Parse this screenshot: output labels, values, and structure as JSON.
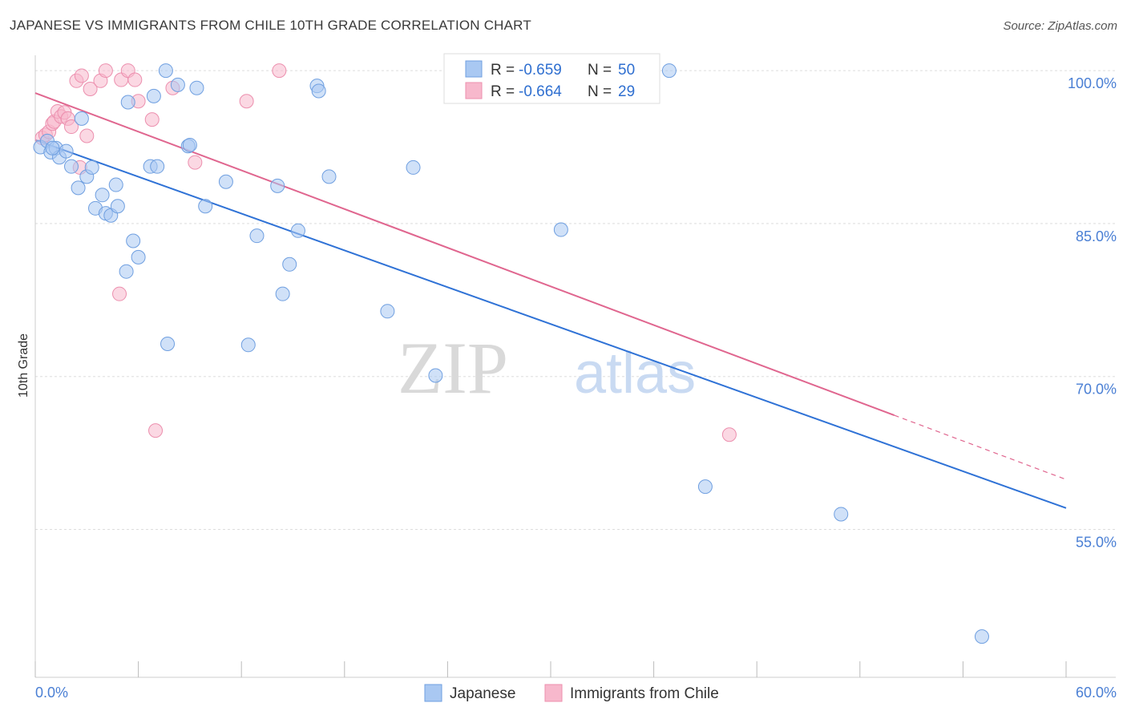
{
  "title": "JAPANESE VS IMMIGRANTS FROM CHILE 10TH GRADE CORRELATION CHART",
  "source": "Source: ZipAtlas.com",
  "watermark": {
    "zip": "ZIP",
    "atlas": "atlas"
  },
  "colors": {
    "japanese_fill": "#a9c8f2",
    "japanese_stroke": "#6f9fe0",
    "japanese_line": "#2f72d6",
    "chile_fill": "#f7b8cc",
    "chile_stroke": "#ec8fae",
    "chile_line": "#e0668f",
    "grid": "#dddddd",
    "tick_label": "#4a7fd4"
  },
  "chart_data": {
    "type": "scatter",
    "ylabel": "10th Grade",
    "xlabel": "",
    "xlim": [
      0,
      60
    ],
    "ylim": [
      40.5,
      101.5
    ],
    "x_tick_labels": [
      {
        "value": 0,
        "label": "0.0%"
      },
      {
        "value": 60,
        "label": "60.0%"
      }
    ],
    "x_minor_ticks": [
      0,
      6,
      12,
      18,
      24,
      30,
      36,
      42,
      48,
      54,
      60
    ],
    "y_ticks": [
      {
        "value": 100,
        "label": "100.0%"
      },
      {
        "value": 85,
        "label": "85.0%"
      },
      {
        "value": 70,
        "label": "70.0%"
      },
      {
        "value": 55,
        "label": "55.0%"
      }
    ],
    "grid": true,
    "legend": [
      {
        "name": "Japanese",
        "r_label": "R = ",
        "r": "-0.659",
        "n_label": "N = ",
        "n": "50"
      },
      {
        "name": "Immigrants from Chile",
        "r_label": "R = ",
        "r": "-0.664",
        "n_label": "N = ",
        "n": "29"
      }
    ],
    "series": [
      {
        "name": "Japanese",
        "points": [
          [
            0.3,
            92.5
          ],
          [
            0.7,
            93.1
          ],
          [
            0.9,
            92.0
          ],
          [
            1.2,
            92.4
          ],
          [
            1.4,
            91.5
          ],
          [
            1.8,
            92.1
          ],
          [
            2.1,
            90.6
          ],
          [
            2.5,
            88.5
          ],
          [
            2.7,
            95.3
          ],
          [
            3.0,
            89.6
          ],
          [
            3.3,
            90.5
          ],
          [
            3.5,
            86.5
          ],
          [
            3.9,
            87.8
          ],
          [
            4.1,
            86.0
          ],
          [
            4.4,
            85.8
          ],
          [
            4.7,
            88.8
          ],
          [
            4.8,
            86.7
          ],
          [
            5.3,
            80.3
          ],
          [
            5.4,
            96.9
          ],
          [
            5.7,
            83.3
          ],
          [
            6.0,
            81.7
          ],
          [
            6.7,
            90.6
          ],
          [
            6.9,
            97.5
          ],
          [
            7.1,
            90.6
          ],
          [
            7.6,
            100.0
          ],
          [
            7.7,
            73.2
          ],
          [
            8.3,
            98.6
          ],
          [
            8.9,
            92.6
          ],
          [
            9.0,
            92.7
          ],
          [
            9.4,
            98.3
          ],
          [
            9.9,
            86.7
          ],
          [
            11.1,
            89.1
          ],
          [
            12.4,
            73.1
          ],
          [
            12.9,
            83.8
          ],
          [
            14.1,
            88.7
          ],
          [
            14.4,
            78.1
          ],
          [
            14.8,
            81.0
          ],
          [
            15.3,
            84.3
          ],
          [
            16.4,
            98.5
          ],
          [
            16.5,
            98.0
          ],
          [
            17.1,
            89.6
          ],
          [
            20.5,
            76.4
          ],
          [
            22.0,
            90.5
          ],
          [
            23.3,
            70.1
          ],
          [
            30.6,
            84.4
          ],
          [
            36.9,
            100.0
          ],
          [
            39.0,
            59.2
          ],
          [
            46.9,
            56.5
          ],
          [
            55.1,
            44.5
          ],
          [
            1.0,
            92.4
          ]
        ],
        "trend": [
          [
            0,
            93.2
          ],
          [
            60,
            57.1
          ]
        ]
      },
      {
        "name": "Immigrants from Chile",
        "points": [
          [
            0.4,
            93.4
          ],
          [
            0.6,
            93.7
          ],
          [
            0.8,
            94.0
          ],
          [
            1.0,
            94.8
          ],
          [
            1.1,
            95.0
          ],
          [
            1.3,
            96.0
          ],
          [
            1.5,
            95.5
          ],
          [
            1.7,
            95.9
          ],
          [
            1.9,
            95.3
          ],
          [
            2.1,
            94.5
          ],
          [
            2.4,
            99.0
          ],
          [
            2.6,
            90.5
          ],
          [
            2.7,
            99.5
          ],
          [
            3.0,
            93.6
          ],
          [
            3.2,
            98.2
          ],
          [
            3.8,
            99.0
          ],
          [
            4.1,
            100.0
          ],
          [
            4.9,
            78.1
          ],
          [
            5.0,
            99.1
          ],
          [
            5.4,
            100.0
          ],
          [
            5.8,
            99.1
          ],
          [
            6.0,
            97.0
          ],
          [
            6.8,
            95.2
          ],
          [
            7.0,
            64.7
          ],
          [
            8.0,
            98.3
          ],
          [
            9.3,
            91.0
          ],
          [
            12.3,
            97.0
          ],
          [
            14.2,
            100.0
          ],
          [
            40.4,
            64.3
          ]
        ],
        "trend": [
          [
            0,
            97.8
          ],
          [
            50,
            66.2
          ]
        ],
        "trend_dashed": [
          [
            50,
            66.2
          ],
          [
            60,
            59.9
          ]
        ]
      }
    ]
  }
}
